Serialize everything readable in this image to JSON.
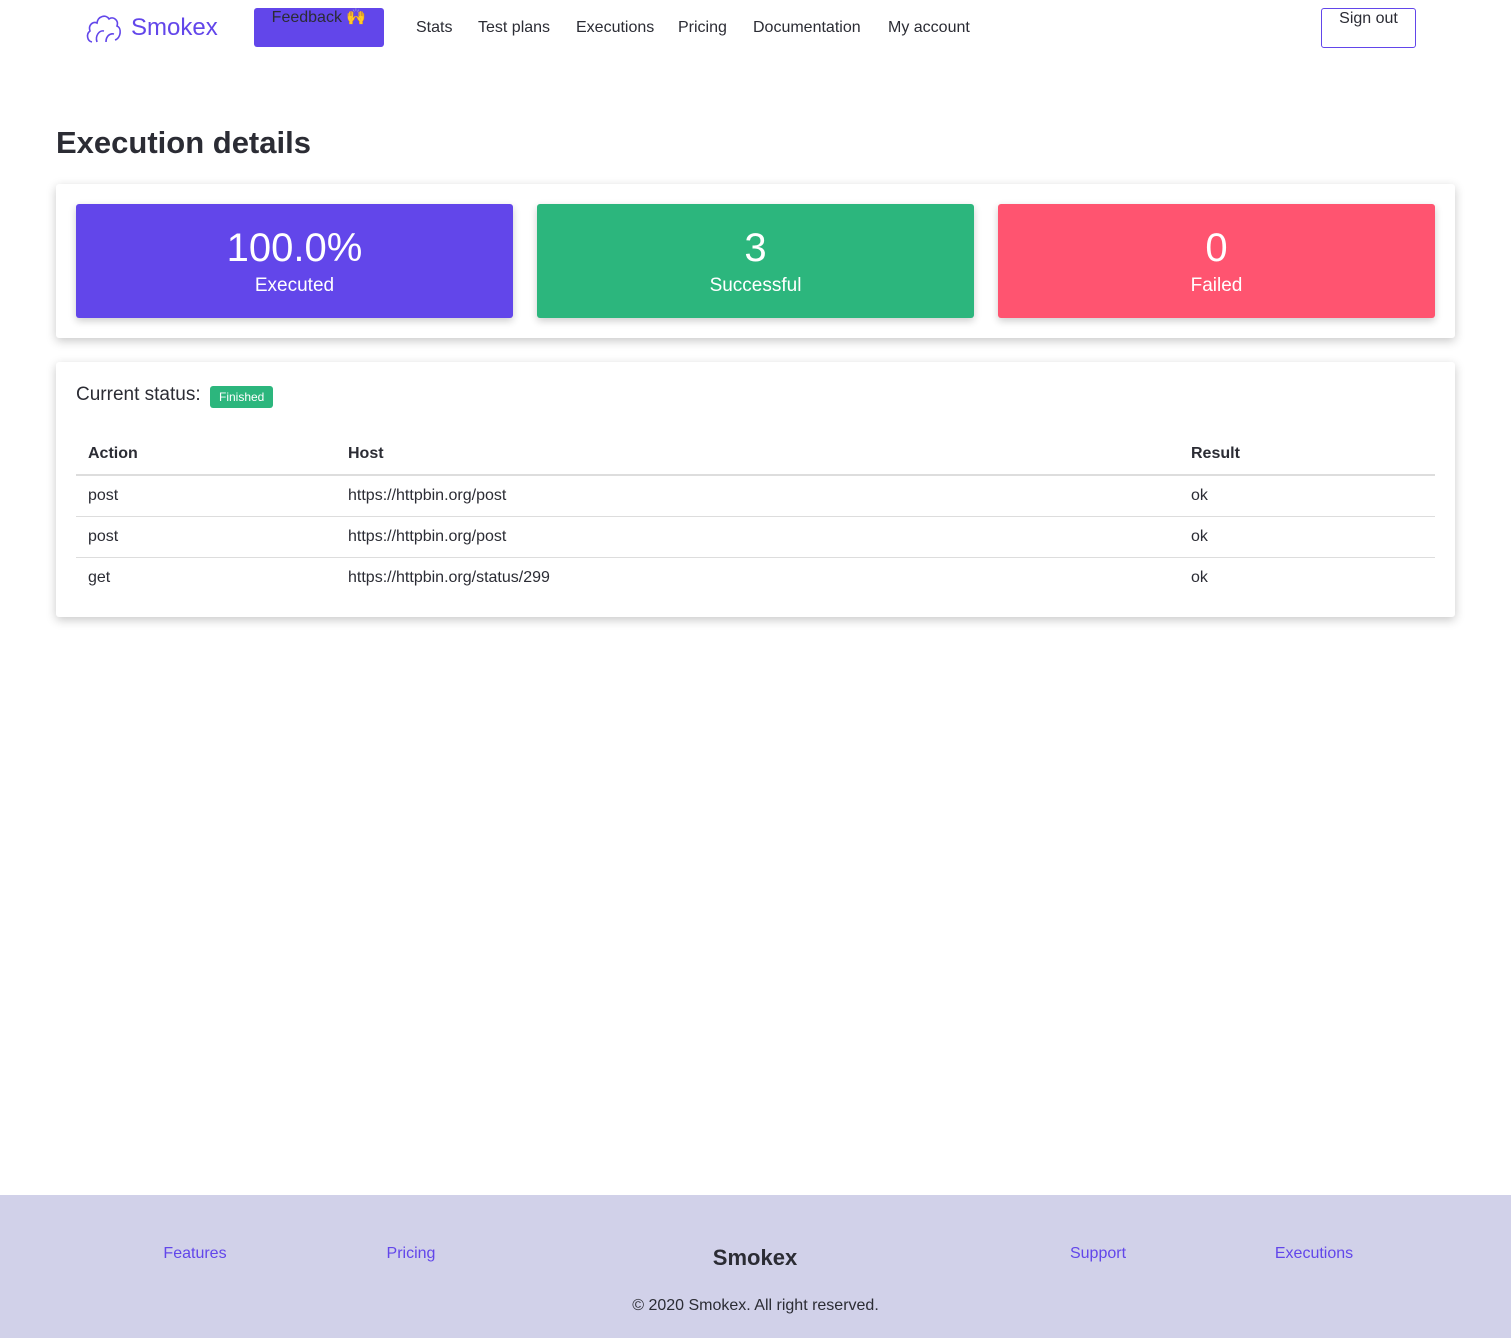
{
  "nav": {
    "brand": "Smokex",
    "feedback": "Feedback 🙌",
    "links": [
      "Stats",
      "Test plans",
      "Executions",
      "Pricing",
      "Documentation",
      "My account"
    ],
    "sign_out": "Sign out"
  },
  "page": {
    "title": "Execution details",
    "stats": [
      {
        "value": "100.0%",
        "label": "Executed"
      },
      {
        "value": "3",
        "label": "Successful"
      },
      {
        "value": "0",
        "label": "Failed"
      }
    ],
    "status_label": "Current status:",
    "status": "Finished",
    "table": {
      "columns": [
        "Action",
        "Host",
        "Result"
      ],
      "rows": [
        [
          "post",
          "https://httpbin.org/post",
          "ok"
        ],
        [
          "post",
          "https://httpbin.org/post",
          "ok"
        ],
        [
          "get",
          "https://httpbin.org/status/299",
          "ok"
        ]
      ]
    }
  },
  "footer": {
    "links": [
      "Features",
      "Pricing",
      "Support",
      "Executions"
    ],
    "brand": "Smokex",
    "copyright": "© 2020 Smokex. All right reserved."
  }
}
